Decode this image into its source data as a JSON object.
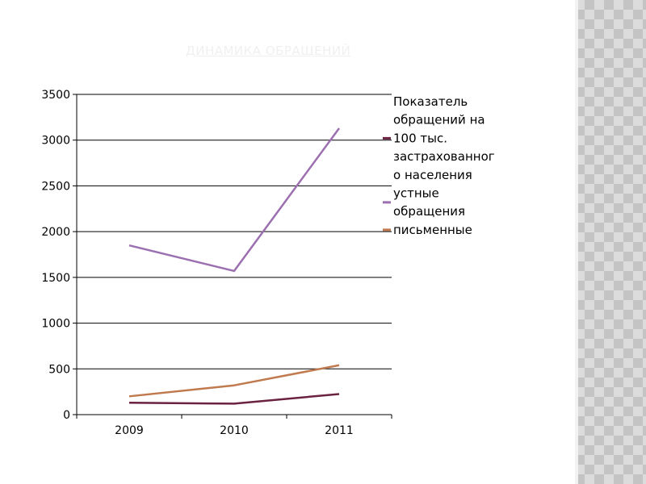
{
  "slide": {
    "title": "ДИНАМИКА ОБРАЩЕНИЙ"
  },
  "chart_data": {
    "type": "line",
    "title": "ДИНАМИКА ОБРАЩЕНИЙ",
    "categories": [
      "2009",
      "2010",
      "2011"
    ],
    "ylim": [
      0,
      3500
    ],
    "yticks": [
      0,
      500,
      1000,
      1500,
      2000,
      2500,
      3000,
      3500
    ],
    "grid": true,
    "legend_position": "right",
    "series": [
      {
        "name": "Показатель обращений на 100 тыс. застрахованного населения",
        "name_lines": [
          "Показатель",
          "обращений на",
          "100 тыс.",
          "застрахованног",
          "о населения"
        ],
        "values": [
          130,
          120,
          225
        ],
        "color": "#6b2140"
      },
      {
        "name": "устные обращения",
        "name_lines": [
          "устные",
          "обращения"
        ],
        "values": [
          1850,
          1570,
          3130
        ],
        "color": "#9b6fb0"
      },
      {
        "name": "письменные",
        "name_lines": [
          "письменные"
        ],
        "values": [
          200,
          320,
          540
        ],
        "color": "#c07a4e"
      }
    ]
  }
}
